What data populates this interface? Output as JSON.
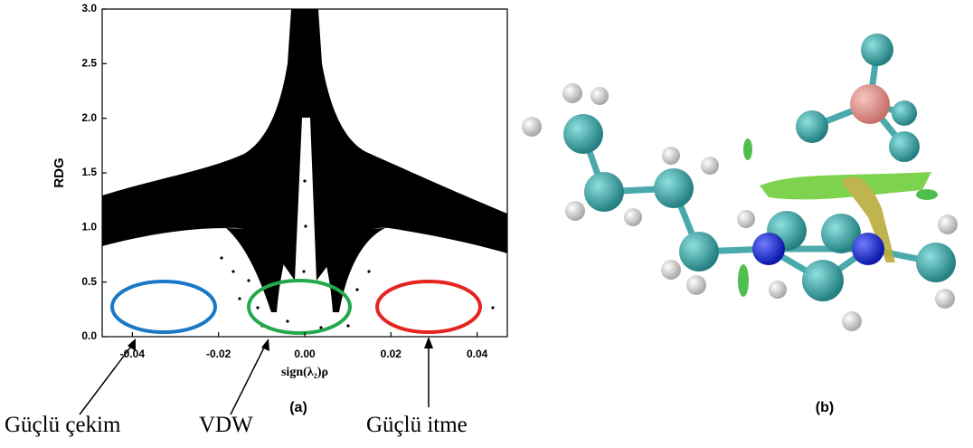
{
  "chart_data": {
    "type": "scatter",
    "xlabel": "sign(λ₂)ρ",
    "ylabel": "RDG",
    "xlim": [
      -0.047,
      0.047
    ],
    "ylim": [
      0,
      3
    ],
    "xticks": [
      -0.04,
      -0.02,
      {
        "value": 0,
        "label": "0.00"
      },
      0.02,
      0.04
    ],
    "yticks": [
      {
        "value": 0,
        "label": "0.0"
      },
      0.5,
      {
        "value": 1,
        "label": "1.0"
      },
      1.5,
      {
        "value": 2,
        "label": "2.0"
      },
      2.5,
      {
        "value": 3,
        "label": "3.0"
      }
    ],
    "annotations": [
      {
        "text": "Güçlü çekim",
        "color": "#1b78c4"
      },
      {
        "text": "VDW",
        "color": "#23a84b"
      },
      {
        "text": "Güçlü itme",
        "color": "#e52420"
      }
    ],
    "panel_labels": [
      "(a)",
      "(b)"
    ]
  }
}
